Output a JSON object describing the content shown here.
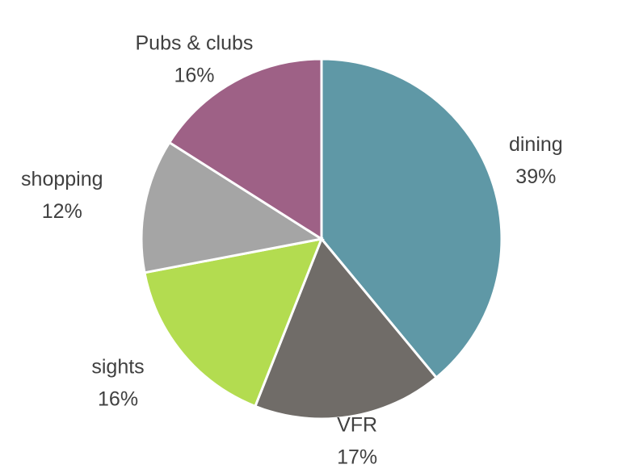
{
  "chart_data": {
    "type": "pie",
    "categories": [
      "dining",
      "VFR",
      "sights",
      "shopping",
      "Pubs & clubs"
    ],
    "values": [
      39,
      17,
      16,
      12,
      16
    ],
    "value_labels": [
      "39%",
      "17%",
      "16%",
      "12%",
      "16%"
    ],
    "colors": [
      "#5f98a6",
      "#706c68",
      "#b3dc50",
      "#a5a5a5",
      "#9e6186"
    ]
  }
}
